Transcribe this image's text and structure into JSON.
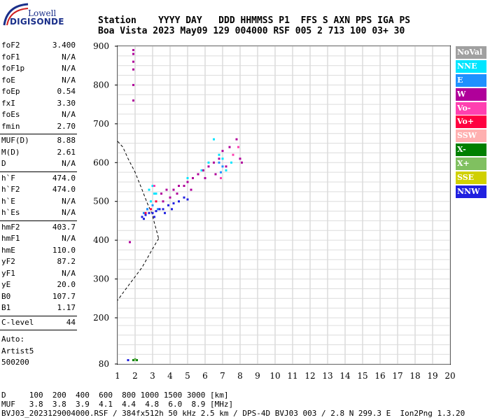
{
  "logo": {
    "line1": "Lowell",
    "line2": "DIGISONDE"
  },
  "header": {
    "line1": "Station    YYYY DAY   DDD HHMMSS P1  FFS S AXN PPS IGA PS",
    "line2": "Boa Vista 2023 May09 129 004000 RSF 005 2 713 100 03+ 30"
  },
  "params": {
    "group1": [
      {
        "label": "foF2",
        "value": "3.400"
      },
      {
        "label": "foF1",
        "value": "N/A"
      },
      {
        "label": "foF1p",
        "value": "N/A"
      },
      {
        "label": "foE",
        "value": "N/A"
      },
      {
        "label": "foEp",
        "value": "0.54"
      },
      {
        "label": "fxI",
        "value": "3.30"
      },
      {
        "label": "foEs",
        "value": "N/A"
      },
      {
        "label": "fmin",
        "value": "2.70"
      }
    ],
    "group2": [
      {
        "label": "MUF(D)",
        "value": "8.88"
      },
      {
        "label": "M(D)",
        "value": "2.61"
      },
      {
        "label": "D",
        "value": "N/A"
      }
    ],
    "group3": [
      {
        "label": "h`F",
        "value": "474.0"
      },
      {
        "label": "h`F2",
        "value": "474.0"
      },
      {
        "label": "h`E",
        "value": "N/A"
      },
      {
        "label": "h`Es",
        "value": "N/A"
      }
    ],
    "group4": [
      {
        "label": "hmF2",
        "value": "403.7"
      },
      {
        "label": "hmF1",
        "value": "N/A"
      },
      {
        "label": "hmE",
        "value": "110.0"
      },
      {
        "label": "yF2",
        "value": "87.2"
      },
      {
        "label": "yF1",
        "value": "N/A"
      },
      {
        "label": "yE",
        "value": "20.0"
      },
      {
        "label": "B0",
        "value": "107.7"
      },
      {
        "label": "B1",
        "value": "1.17"
      }
    ],
    "group5": [
      {
        "label": "C-level",
        "value": "44"
      }
    ],
    "auto": [
      "Auto:",
      "Artist5",
      "500200"
    ]
  },
  "legend": [
    {
      "label": "NoVal",
      "color": "#a0a0a0"
    },
    {
      "label": "NNE",
      "color": "#00e5ff"
    },
    {
      "label": "E",
      "color": "#1e90ff"
    },
    {
      "label": "W",
      "color": "#b0009a"
    },
    {
      "label": "Vo-",
      "color": "#ff40b0"
    },
    {
      "label": "Vo+",
      "color": "#ff0040"
    },
    {
      "label": "SSW",
      "color": "#ffb0b0"
    },
    {
      "label": "X-",
      "color": "#008000"
    },
    {
      "label": "X+",
      "color": "#80c060"
    },
    {
      "label": "SSE",
      "color": "#d0d000"
    },
    {
      "label": "NNW",
      "color": "#2020e0"
    }
  ],
  "footer": {
    "line1": "D     100  200  400  600  800 1000 1500 3000 [km]",
    "line2": "MUF   3.8  3.8  3.9  4.1  4.4  4.8  6.0  8.9 [MHz]",
    "line3": "BVJ03_2023129004000.RSF / 384fx512h 50 kHz 2.5 km / DPS-4D BVJ03 003 / 2.8 N 299.3 E  Ion2Png 1.3.20"
  },
  "chart_data": {
    "type": "scatter",
    "x_ticks": [
      "1",
      "2",
      "3",
      "4",
      "5",
      "6",
      "7",
      "8",
      "9",
      "10",
      "11",
      "12",
      "13",
      "14",
      "15",
      "16",
      "17",
      "18",
      "19",
      "20"
    ],
    "y_ticks": [
      "80",
      "200",
      "300",
      "400",
      "500",
      "600",
      "700",
      "800",
      "900"
    ],
    "xlim": [
      1,
      20
    ],
    "ylim": [
      80,
      900
    ],
    "grid": true,
    "legend_position": "right",
    "series": [
      {
        "name": "NNE",
        "color": "#00e5ff",
        "points": [
          [
            2.8,
            530
          ],
          [
            3.0,
            540
          ],
          [
            3.1,
            520
          ],
          [
            2.9,
            500
          ],
          [
            5.0,
            560
          ],
          [
            5.8,
            580
          ],
          [
            6.2,
            600
          ],
          [
            6.5,
            660
          ],
          [
            6.8,
            620
          ],
          [
            7.0,
            610
          ],
          [
            7.2,
            580
          ],
          [
            6.9,
            560
          ],
          [
            7.5,
            600
          ],
          [
            3.2,
            520
          ],
          [
            2.7,
            480
          ]
        ]
      },
      {
        "name": "E",
        "color": "#1e90ff",
        "points": [
          [
            2.5,
            470
          ],
          [
            2.7,
            480
          ],
          [
            3.0,
            490
          ],
          [
            3.3,
            480
          ],
          [
            6.8,
            600
          ],
          [
            7.0,
            590
          ],
          [
            6.9,
            575
          ]
        ]
      },
      {
        "name": "W",
        "color": "#b0009a",
        "points": [
          [
            1.9,
            890
          ],
          [
            1.9,
            880
          ],
          [
            1.9,
            860
          ],
          [
            1.9,
            840
          ],
          [
            1.9,
            800
          ],
          [
            1.9,
            760
          ],
          [
            3.5,
            520
          ],
          [
            3.8,
            530
          ],
          [
            4.0,
            510
          ],
          [
            4.2,
            530
          ],
          [
            4.5,
            540
          ],
          [
            4.8,
            540
          ],
          [
            5.0,
            550
          ],
          [
            5.3,
            560
          ],
          [
            5.6,
            570
          ],
          [
            5.9,
            580
          ],
          [
            6.2,
            590
          ],
          [
            6.5,
            600
          ],
          [
            6.8,
            610
          ],
          [
            7.0,
            630
          ],
          [
            7.4,
            640
          ],
          [
            7.8,
            660
          ],
          [
            8.0,
            610
          ],
          [
            8.1,
            600
          ],
          [
            3.6,
            500
          ],
          [
            4.4,
            520
          ],
          [
            5.2,
            530
          ],
          [
            6.0,
            560
          ],
          [
            6.6,
            570
          ],
          [
            7.2,
            590
          ],
          [
            1.7,
            395
          ]
        ]
      },
      {
        "name": "Vo-",
        "color": "#ff40b0",
        "points": [
          [
            3.1,
            540
          ],
          [
            6.9,
            560
          ],
          [
            7.6,
            620
          ],
          [
            7.9,
            640
          ]
        ]
      },
      {
        "name": "Vo+",
        "color": "#ff0040",
        "points": [
          [
            2.6,
            470
          ],
          [
            2.9,
            480
          ],
          [
            3.2,
            500
          ]
        ]
      },
      {
        "name": "X-",
        "color": "#008000",
        "points": [
          [
            1.9,
            90
          ],
          [
            2.0,
            92
          ],
          [
            2.1,
            90
          ]
        ]
      },
      {
        "name": "X+",
        "color": "#80c060",
        "points": [
          [
            2.0,
            91
          ]
        ]
      },
      {
        "name": "NNW",
        "color": "#2020e0",
        "points": [
          [
            2.4,
            460
          ],
          [
            2.6,
            465
          ],
          [
            2.8,
            470
          ],
          [
            3.0,
            470
          ],
          [
            3.2,
            475
          ],
          [
            3.4,
            480
          ],
          [
            3.6,
            480
          ],
          [
            3.9,
            490
          ],
          [
            4.2,
            495
          ],
          [
            4.5,
            500
          ],
          [
            4.8,
            510
          ],
          [
            5.0,
            505
          ],
          [
            2.5,
            455
          ],
          [
            3.1,
            460
          ],
          [
            3.7,
            470
          ],
          [
            4.1,
            480
          ],
          [
            1.6,
            90
          ]
        ]
      }
    ],
    "profile": [
      [
        1,
        655
      ],
      [
        1.3,
        640
      ],
      [
        1.6,
        610
      ],
      [
        2.0,
        575
      ],
      [
        2.4,
        530
      ],
      [
        2.7,
        495
      ],
      [
        2.95,
        470
      ],
      [
        3.1,
        445
      ],
      [
        3.25,
        420
      ],
      [
        3.35,
        403
      ],
      [
        3.35,
        405
      ],
      [
        2.9,
        370
      ],
      [
        2.4,
        330
      ],
      [
        1.9,
        300
      ],
      [
        1.4,
        270
      ],
      [
        1.0,
        245
      ]
    ]
  }
}
